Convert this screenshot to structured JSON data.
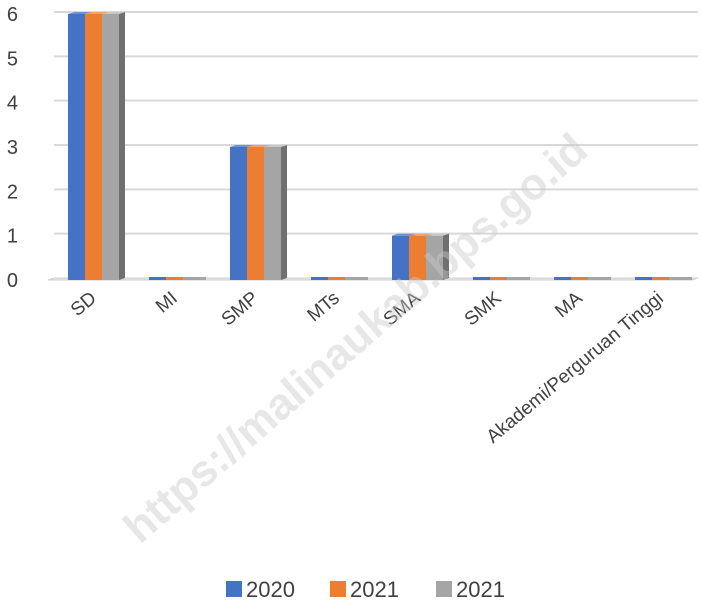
{
  "watermark": "https://malinaukab.bps.go.id",
  "chart_data": {
    "type": "bar",
    "style": "3d-clustered-column",
    "categories": [
      "SD",
      "MI",
      "SMP",
      "MTs",
      "SMA",
      "SMK",
      "MA",
      "Akademi/Perguruan Tinggi"
    ],
    "series": [
      {
        "name": "2020",
        "values": [
          6,
          0,
          3,
          0,
          1,
          0,
          0,
          0
        ],
        "color": "#4472C4",
        "side": "#2E4F8C",
        "top": "#6C93DA"
      },
      {
        "name": "2021",
        "values": [
          6,
          0,
          3,
          0,
          1,
          0,
          0,
          0
        ],
        "color": "#ED7D31",
        "side": "#B35A1E",
        "top": "#F4A06A"
      },
      {
        "name": "2021",
        "values": [
          6,
          0,
          3,
          0,
          1,
          0,
          0,
          0
        ],
        "color": "#A5A5A5",
        "side": "#707070",
        "top": "#C8C8C8"
      }
    ],
    "y_ticks": [
      "0",
      "1",
      "2",
      "3",
      "4",
      "5",
      "6"
    ],
    "ylim": [
      0,
      6
    ],
    "grid": true,
    "legend_position": "bottom",
    "title": "",
    "xlabel": "",
    "ylabel": ""
  }
}
